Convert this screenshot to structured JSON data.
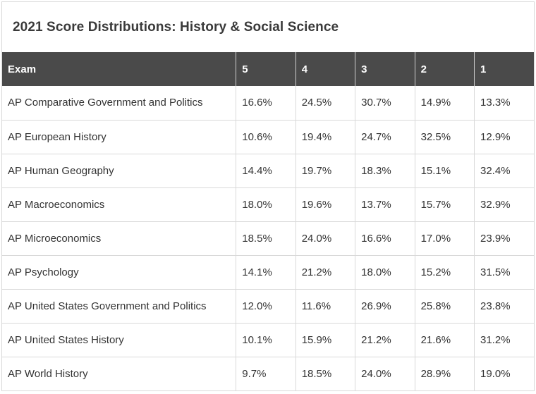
{
  "title": "2021 Score Distributions: History & Social Science",
  "columns": [
    "Exam",
    "5",
    "4",
    "3",
    "2",
    "1"
  ],
  "rows": [
    {
      "exam": "AP Comparative Government and Politics",
      "s5": "16.6%",
      "s4": "24.5%",
      "s3": "30.7%",
      "s2": "14.9%",
      "s1": "13.3%"
    },
    {
      "exam": "AP European History",
      "s5": "10.6%",
      "s4": "19.4%",
      "s3": "24.7%",
      "s2": "32.5%",
      "s1": "12.9%"
    },
    {
      "exam": "AP Human Geography",
      "s5": "14.4%",
      "s4": "19.7%",
      "s3": "18.3%",
      "s2": "15.1%",
      "s1": "32.4%"
    },
    {
      "exam": "AP Macroeconomics",
      "s5": "18.0%",
      "s4": "19.6%",
      "s3": "13.7%",
      "s2": "15.7%",
      "s1": "32.9%"
    },
    {
      "exam": "AP Microeconomics",
      "s5": "18.5%",
      "s4": "24.0%",
      "s3": "16.6%",
      "s2": "17.0%",
      "s1": "23.9%"
    },
    {
      "exam": "AP Psychology",
      "s5": "14.1%",
      "s4": "21.2%",
      "s3": "18.0%",
      "s2": "15.2%",
      "s1": "31.5%"
    },
    {
      "exam": "AP United States Government and Politics",
      "s5": "12.0%",
      "s4": "11.6%",
      "s3": "26.9%",
      "s2": "25.8%",
      "s1": "23.8%"
    },
    {
      "exam": "AP United States History",
      "s5": "10.1%",
      "s4": "15.9%",
      "s3": "21.2%",
      "s2": "21.6%",
      "s1": "31.2%"
    },
    {
      "exam": "AP World History",
      "s5": "9.7%",
      "s4": "18.5%",
      "s3": "24.0%",
      "s2": "28.9%",
      "s1": "19.0%"
    }
  ],
  "colors": {
    "header_bg": "#4a4a4a",
    "header_text": "#ffffff",
    "body_text": "#333333",
    "grid": "#d9d9d9"
  }
}
